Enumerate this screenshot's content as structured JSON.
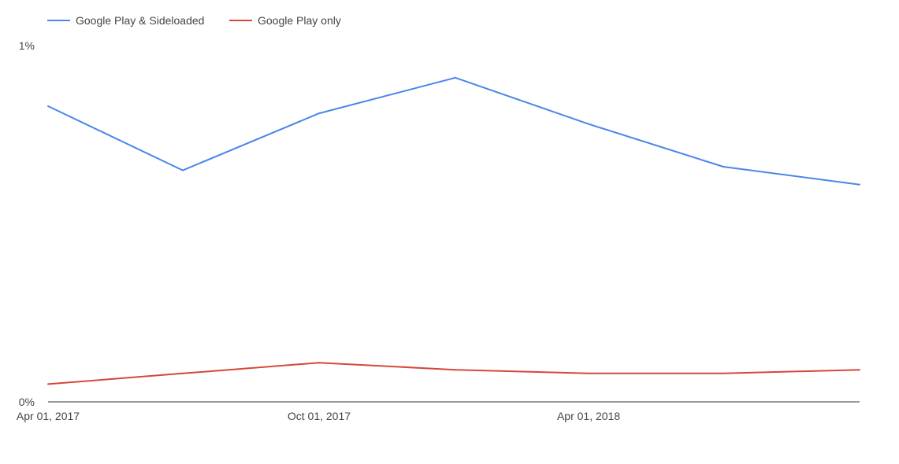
{
  "chart_data": {
    "type": "line",
    "title": "",
    "xlabel": "",
    "ylabel": "",
    "x": [
      "2017-04-01",
      "2017-07-01",
      "2017-10-01",
      "2018-01-01",
      "2018-04-01",
      "2018-07-01",
      "2018-10-01"
    ],
    "x_ticks": [
      {
        "date": "2017-04-01",
        "label": "Apr 01, 2017"
      },
      {
        "date": "2017-10-01",
        "label": "Oct 01, 2017"
      },
      {
        "date": "2018-04-01",
        "label": "Apr 01, 2018"
      }
    ],
    "y_ticks": [
      {
        "value": 0,
        "label": "0%"
      },
      {
        "value": 1,
        "label": "1%"
      }
    ],
    "ylim": [
      0,
      1
    ],
    "grid": false,
    "legend_position": "top-left",
    "series": [
      {
        "name": "Google Play & Sideloaded",
        "color": "#4a86e8",
        "values": [
          0.83,
          0.65,
          0.81,
          0.91,
          0.78,
          0.66,
          0.61
        ]
      },
      {
        "name": "Google Play only",
        "color": "#d5473b",
        "values": [
          0.05,
          0.08,
          0.11,
          0.09,
          0.08,
          0.08,
          0.09
        ]
      }
    ]
  }
}
